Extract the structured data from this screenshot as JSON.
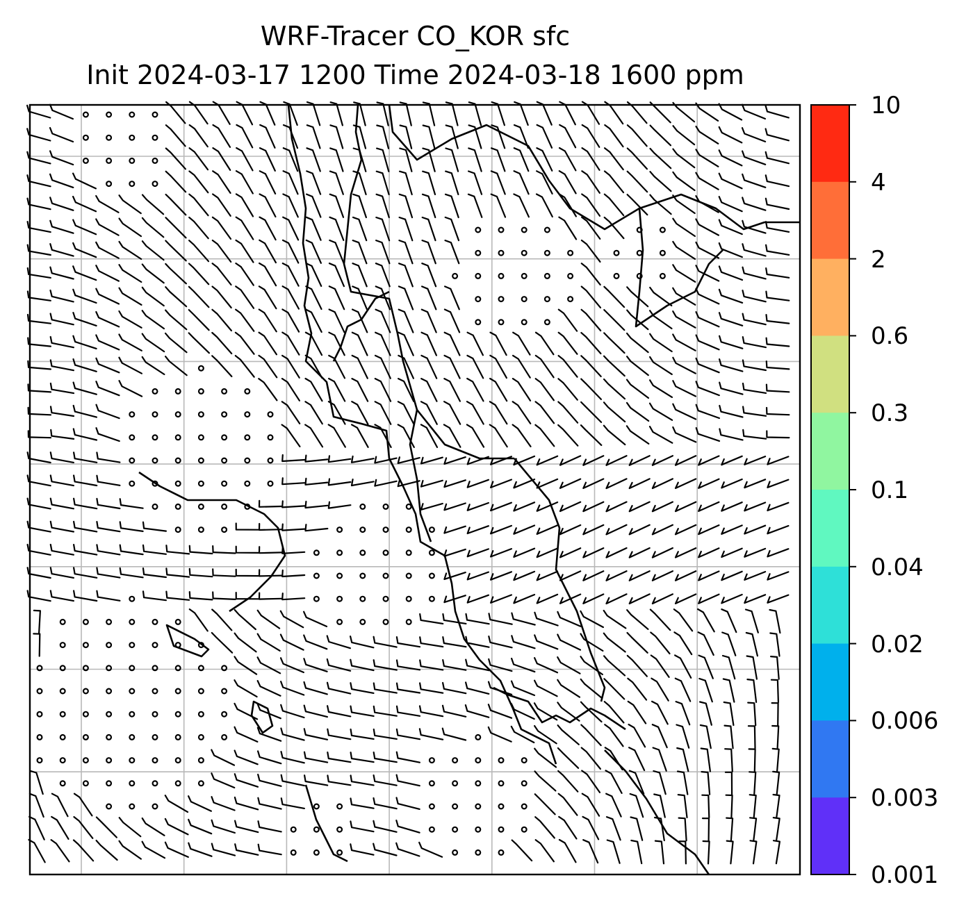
{
  "title": {
    "line1": "WRF-Tracer CO_KOR sfc",
    "line2": "Init 2024-03-17 1200 Time 2024-03-18 1600 ppm"
  },
  "colorbar": {
    "ticks": [
      "10",
      "4",
      "2",
      "0.6",
      "0.3",
      "0.1",
      "0.04",
      "0.02",
      "0.006",
      "0.003",
      "0.001"
    ],
    "colors": [
      "#ff2a12",
      "#ff6e38",
      "#ffb060",
      "#d0e080",
      "#90f6a0",
      "#60f8c0",
      "#2ee0d8",
      "#00b0ec",
      "#3078f2",
      "#6030f8"
    ]
  },
  "map": {
    "grid_columns": 8,
    "grid_rows": 8,
    "gridline_color": "#b8b8b8",
    "coastline_color": "#000000",
    "tracer_field_visible": false,
    "wind_barbs": true
  }
}
